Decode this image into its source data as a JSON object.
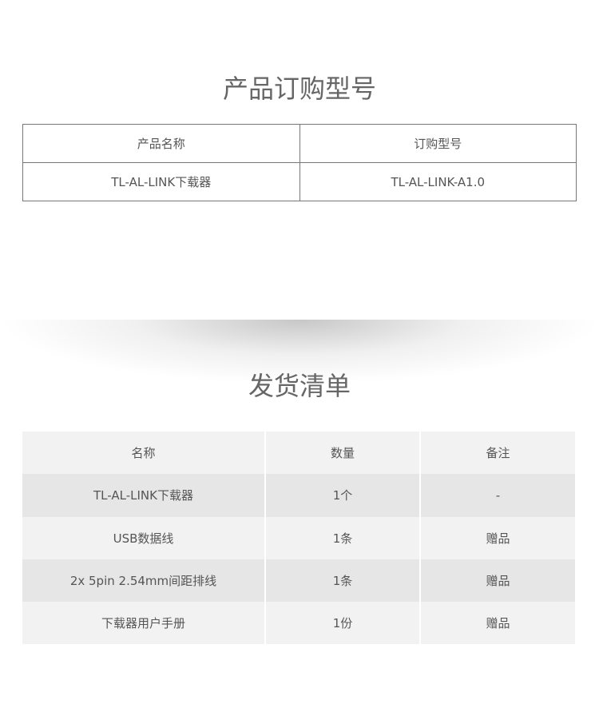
{
  "order_section": {
    "title": "产品订购型号",
    "headers": [
      "产品名称",
      "订购型号"
    ],
    "rows": [
      [
        "TL-AL-LINK下载器",
        "TL-AL-LINK-A1.0"
      ]
    ]
  },
  "packing_section": {
    "title": "发货清单",
    "headers": [
      "名称",
      "数量",
      "备注"
    ],
    "rows": [
      [
        "TL-AL-LINK下载器",
        "1个",
        "-"
      ],
      [
        "USB数据线",
        "1条",
        "赠品"
      ],
      [
        "2x 5pin 2.54mm间距排线",
        "1条",
        "赠品"
      ],
      [
        "下载器用户手册",
        "1份",
        "赠品"
      ]
    ]
  }
}
